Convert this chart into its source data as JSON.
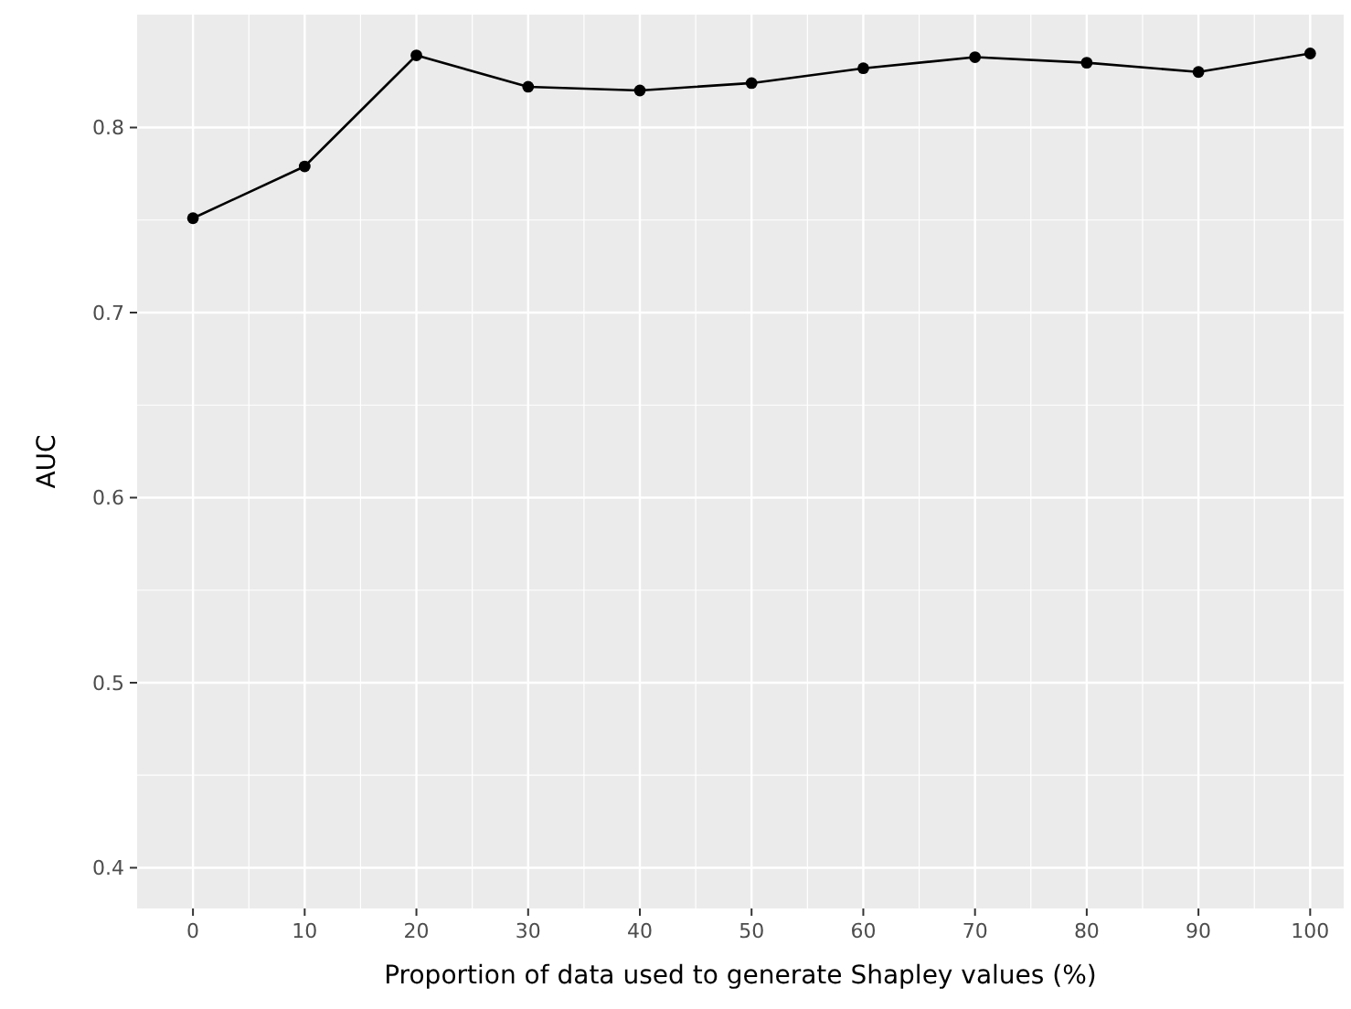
{
  "chart_data": {
    "type": "line",
    "xlabel": "Proportion of data used to generate Shapley values (%)",
    "ylabel": "AUC",
    "x": [
      0,
      10,
      20,
      30,
      40,
      50,
      60,
      70,
      80,
      90,
      100
    ],
    "series": [
      {
        "color": "#000000",
        "values": [
          0.751,
          0.779,
          0.839,
          0.822,
          0.82,
          0.824,
          0.832,
          0.838,
          0.835,
          0.83,
          0.84
        ]
      }
    ],
    "xlim": [
      -5,
      103
    ],
    "xticks": [
      0,
      10,
      20,
      30,
      40,
      50,
      60,
      70,
      80,
      90,
      100
    ],
    "ylim": [
      0.378,
      0.861
    ],
    "yticks": [
      0.4,
      0.5,
      0.6,
      0.7,
      0.8
    ],
    "grid": true,
    "marker": "circle",
    "line_style": "solid"
  }
}
